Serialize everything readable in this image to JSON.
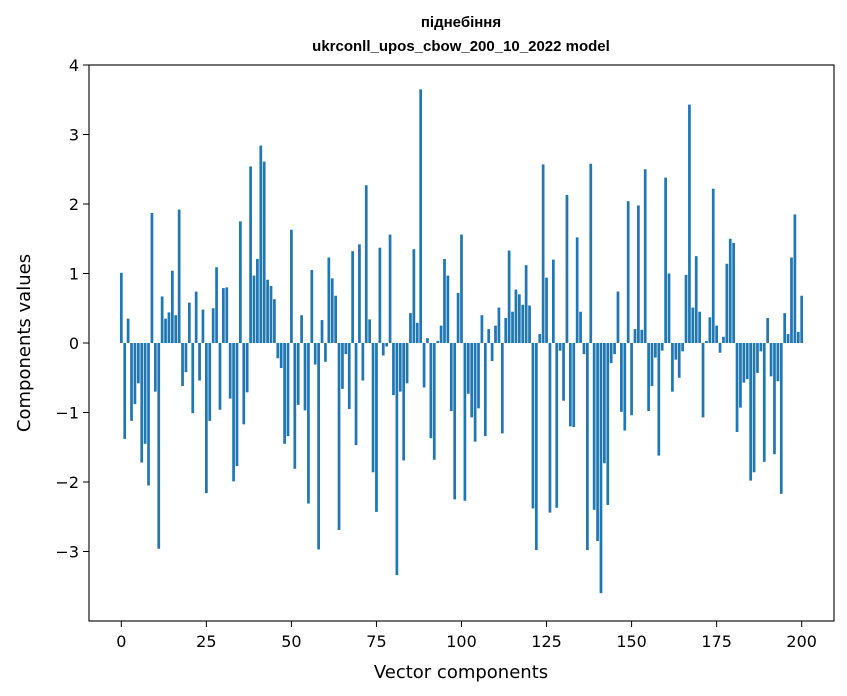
{
  "chart_data": {
    "type": "bar",
    "title_line1": "піднебіння",
    "title_line2": "ukrconll_upos_cbow_200_10_2022 model",
    "xlabel": "Vector components",
    "ylabel": "Components values",
    "xlim": [
      -9.5,
      209.5
    ],
    "ylim": [
      -4.0,
      4.0
    ],
    "xticks": [
      0,
      25,
      50,
      75,
      100,
      125,
      150,
      175,
      200
    ],
    "yticks": [
      -3,
      -2,
      -1,
      0,
      1,
      2,
      3,
      4
    ],
    "ytick_labels": [
      "−3",
      "−2",
      "−1",
      "0",
      "1",
      "2",
      "3",
      "4"
    ],
    "bar_color": "#1f77b4",
    "values": [
      1.01,
      -1.38,
      0.35,
      -1.12,
      -0.88,
      -0.58,
      -1.72,
      -1.45,
      -2.05,
      1.87,
      -0.7,
      -2.96,
      0.67,
      0.35,
      0.44,
      1.04,
      0.4,
      1.92,
      -0.62,
      -0.42,
      0.58,
      -1.01,
      0.74,
      -0.54,
      0.48,
      -2.16,
      -1.12,
      0.5,
      1.09,
      -0.96,
      0.79,
      0.8,
      -0.8,
      -1.99,
      -1.77,
      1.75,
      -1.17,
      -0.71,
      2.54,
      0.97,
      1.21,
      2.84,
      2.61,
      0.91,
      0.82,
      0.63,
      -0.22,
      -0.36,
      -1.45,
      -1.34,
      1.63,
      -1.81,
      -0.89,
      0.4,
      -0.97,
      -2.31,
      1.05,
      -0.31,
      -2.97,
      0.33,
      -0.27,
      1.23,
      0.93,
      0.68,
      -2.69,
      -0.66,
      -0.16,
      -0.95,
      1.32,
      -1.47,
      1.42,
      -0.54,
      2.27,
      0.34,
      -1.86,
      -2.43,
      1.37,
      -0.18,
      -0.05,
      1.56,
      -0.75,
      -3.34,
      -0.7,
      -1.69,
      -0.58,
      0.43,
      1.35,
      0.29,
      3.65,
      -0.64,
      0.07,
      -1.37,
      -1.68,
      0.03,
      0.25,
      1.21,
      0.97,
      -0.98,
      -2.25,
      0.72,
      1.56,
      -2.27,
      -0.73,
      -1.07,
      -1.42,
      -0.94,
      0.4,
      -1.34,
      0.2,
      -0.26,
      0.25,
      0.51,
      -1.3,
      0.36,
      1.33,
      0.45,
      0.77,
      0.7,
      0.55,
      1.12,
      0.54,
      -2.38,
      -2.98,
      0.13,
      2.57,
      0.94,
      -2.44,
      1.2,
      -2.37,
      -0.11,
      -0.83,
      2.13,
      -1.2,
      -1.21,
      1.52,
      0.45,
      -0.16,
      -2.98,
      2.58,
      -2.4,
      -2.85,
      -3.6,
      -1.73,
      -2.33,
      -0.29,
      -0.16,
      0.74,
      -0.99,
      -1.26,
      2.04,
      -1.04,
      0.2,
      1.98,
      0.19,
      2.5,
      -0.98,
      -0.62,
      -0.21,
      -1.62,
      -0.11,
      2.38,
      1.0,
      -0.7,
      -0.24,
      -0.5,
      -0.12,
      0.98,
      3.43,
      0.51,
      1.25,
      0.45,
      -1.07,
      0.03,
      0.37,
      2.22,
      0.25,
      -0.14,
      0.09,
      1.14,
      1.5,
      1.44,
      -1.28,
      -0.93,
      -0.57,
      -0.52,
      -1.98,
      -1.86,
      -0.43,
      -0.12,
      -1.71,
      0.36,
      -0.48,
      -1.6,
      -0.55,
      -2.17,
      0.43,
      0.13,
      1.23,
      1.85,
      0.16,
      0.68
    ]
  }
}
